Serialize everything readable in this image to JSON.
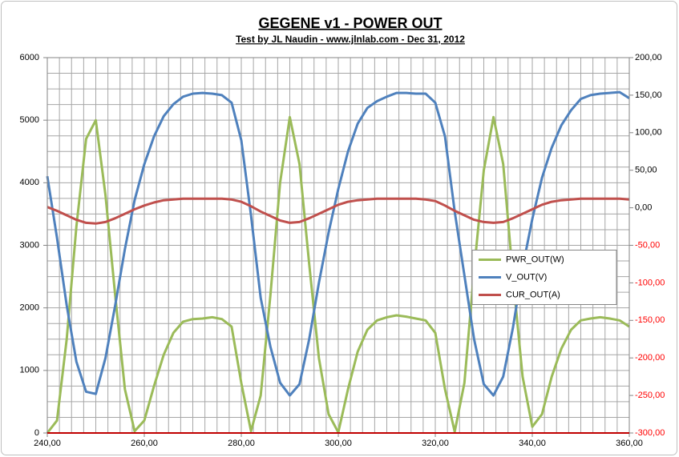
{
  "chart_data": {
    "type": "line",
    "title": "GEGENE v1 - POWER OUT",
    "subtitle": "Test by JL Naudin - www.jlnlab.com - Dec 31, 2012",
    "x": [
      240,
      242,
      244,
      246,
      248,
      250,
      252,
      254,
      256,
      258,
      260,
      262,
      264,
      266,
      268,
      270,
      272,
      274,
      276,
      278,
      280,
      282,
      284,
      286,
      288,
      290,
      292,
      294,
      296,
      298,
      300,
      302,
      304,
      306,
      308,
      310,
      312,
      314,
      316,
      318,
      320,
      322,
      324,
      326,
      328,
      330,
      332,
      334,
      336,
      338,
      340,
      342,
      344,
      346,
      348,
      350,
      352,
      354,
      356,
      358,
      360
    ],
    "series": [
      {
        "name": "PWR_OUT(W)",
        "color": "#9bbb59",
        "axis": "y",
        "values": [
          0,
          200,
          1500,
          3300,
          4700,
          5000,
          3800,
          2200,
          700,
          30,
          200,
          750,
          1250,
          1600,
          1780,
          1820,
          1830,
          1850,
          1820,
          1700,
          800,
          30,
          600,
          2200,
          4000,
          5050,
          4300,
          2700,
          1200,
          300,
          10,
          700,
          1300,
          1650,
          1800,
          1850,
          1880,
          1860,
          1830,
          1800,
          1600,
          700,
          20,
          800,
          2600,
          4200,
          5050,
          4300,
          2500,
          900,
          100,
          300,
          900,
          1350,
          1650,
          1800,
          1830,
          1850,
          1830,
          1800,
          1700
        ]
      },
      {
        "name": "V_OUT(V)",
        "color": "#4f81bd",
        "axis": "y2",
        "values": [
          42,
          -40,
          -130,
          -205,
          -245,
          -248,
          -200,
          -130,
          -55,
          10,
          58,
          95,
          122,
          138,
          148,
          152,
          153,
          152,
          150,
          140,
          90,
          -10,
          -120,
          -185,
          -233,
          -250,
          -235,
          -175,
          -100,
          -33,
          25,
          75,
          112,
          133,
          142,
          148,
          153,
          153,
          152,
          152,
          140,
          95,
          -5,
          -90,
          -175,
          -235,
          -250,
          -225,
          -160,
          -80,
          -15,
          40,
          80,
          110,
          130,
          145,
          150,
          152,
          153,
          154,
          146
        ]
      },
      {
        "name": "CUR_OUT(A)",
        "color": "#c0504d",
        "axis": "y2",
        "values": [
          1,
          -4,
          -10,
          -16,
          -20,
          -21,
          -19,
          -14,
          -8,
          -2,
          3,
          7,
          10,
          11,
          12,
          12,
          12,
          12,
          12,
          11,
          8,
          2,
          -5,
          -11,
          -17,
          -20,
          -19,
          -14,
          -8,
          -2,
          4,
          8,
          10,
          11,
          12,
          12,
          12,
          12,
          12,
          11,
          9,
          3,
          -4,
          -10,
          -16,
          -19,
          -20,
          -19,
          -14,
          -8,
          -2,
          4,
          8,
          10,
          11,
          12,
          12,
          12,
          12,
          12,
          11
        ]
      }
    ],
    "xlim": [
      240,
      360
    ],
    "xticks": [
      {
        "value": 240,
        "label": "240,00"
      },
      {
        "value": 260,
        "label": "260,00"
      },
      {
        "value": 280,
        "label": "280,00"
      },
      {
        "value": 300,
        "label": "300,00"
      },
      {
        "value": 320,
        "label": "320,00"
      },
      {
        "value": 340,
        "label": "340,00"
      },
      {
        "value": 360,
        "label": "360,00"
      }
    ],
    "ylim": [
      0,
      6000
    ],
    "yticks": [
      0,
      1000,
      2000,
      3000,
      4000,
      5000,
      6000
    ],
    "y2lim": [
      -300,
      200
    ],
    "y2ticks": [
      {
        "value": -300,
        "label": "-300,00"
      },
      {
        "value": -250,
        "label": "-250,00"
      },
      {
        "value": -200,
        "label": "-200,00"
      },
      {
        "value": -150,
        "label": "-150,00"
      },
      {
        "value": -100,
        "label": "-100,00"
      },
      {
        "value": -50,
        "label": "-50,00"
      },
      {
        "value": 0,
        "label": "0,00"
      },
      {
        "value": 50,
        "label": "50,00"
      },
      {
        "value": 100,
        "label": "100,00"
      },
      {
        "value": 150,
        "label": "150,00"
      },
      {
        "value": 200,
        "label": "200,00"
      }
    ],
    "grid": true,
    "minor_grid": {
      "x": 2.5,
      "y": 250
    },
    "legend": "right"
  }
}
